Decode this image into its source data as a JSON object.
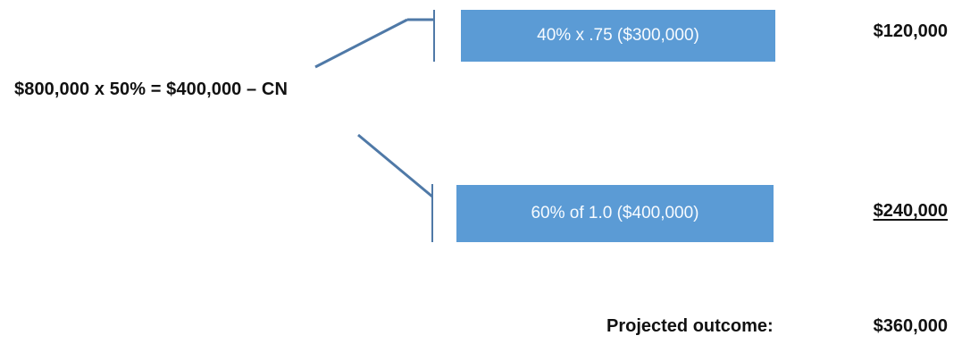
{
  "formula": {
    "main": "$800,000 x 50% = $400,000 – CN"
  },
  "branches": [
    {
      "label": "40% x .75 ($300,000)",
      "amount": "$120,000"
    },
    {
      "label": "60% of 1.0 ($400,000)",
      "amount": "$240,000"
    }
  ],
  "outcome": {
    "label": "Projected outcome:",
    "amount": "$360,000"
  },
  "colors": {
    "box_fill": "#5b9bd5",
    "box_text": "#f7fbff",
    "connector": "#4f79a7"
  }
}
